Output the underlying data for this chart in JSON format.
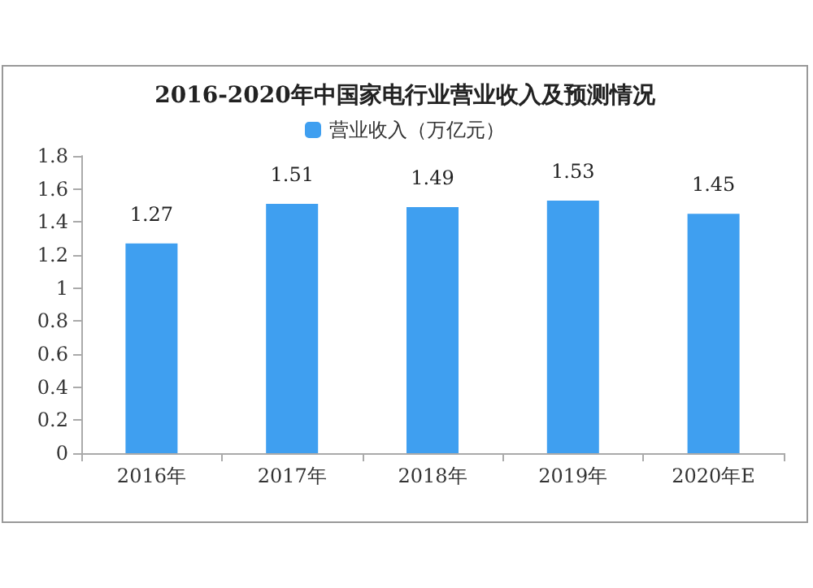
{
  "chart_data": {
    "type": "bar",
    "title": "2016-2020年中国家电行业营业收入及预测情况",
    "categories": [
      "2016年",
      "2017年",
      "2018年",
      "2019年",
      "2020年E"
    ],
    "series": [
      {
        "name": "营业收入（万亿元）",
        "color": "#3f9ff0",
        "values": [
          1.27,
          1.51,
          1.49,
          1.53,
          1.45
        ]
      }
    ],
    "ylim": [
      0,
      1.8
    ],
    "yticks": [
      0,
      0.2,
      0.4,
      0.6,
      0.8,
      1,
      1.2,
      1.4,
      1.6,
      1.8
    ],
    "grid": false,
    "legend": "top",
    "data_labels": true
  }
}
